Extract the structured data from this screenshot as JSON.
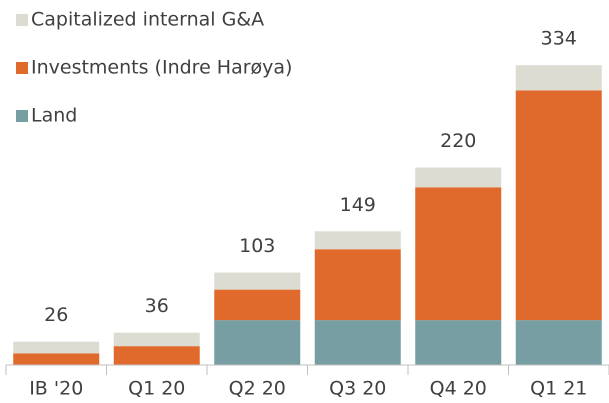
{
  "chart_data": {
    "type": "stacked_bar",
    "categories": [
      "IB '20",
      "Q1 20",
      "Q2 20",
      "Q3 20",
      "Q4 20",
      "Q1 21"
    ],
    "series": [
      {
        "name": "Land",
        "color": "#769ea3",
        "values": [
          0,
          0,
          50,
          50,
          50,
          50
        ]
      },
      {
        "name": "Investments (Indre Harøya)",
        "color": "#e06a2c",
        "values": [
          13,
          21,
          34,
          79,
          148,
          256
        ]
      },
      {
        "name": "Capitalized internal G&A",
        "color": "#dcdcd2",
        "values": [
          13,
          15,
          19,
          20,
          22,
          28
        ]
      }
    ],
    "totals": [
      26,
      36,
      103,
      149,
      220,
      334
    ],
    "ylim": [
      0,
      400
    ],
    "legend": "top-left"
  }
}
